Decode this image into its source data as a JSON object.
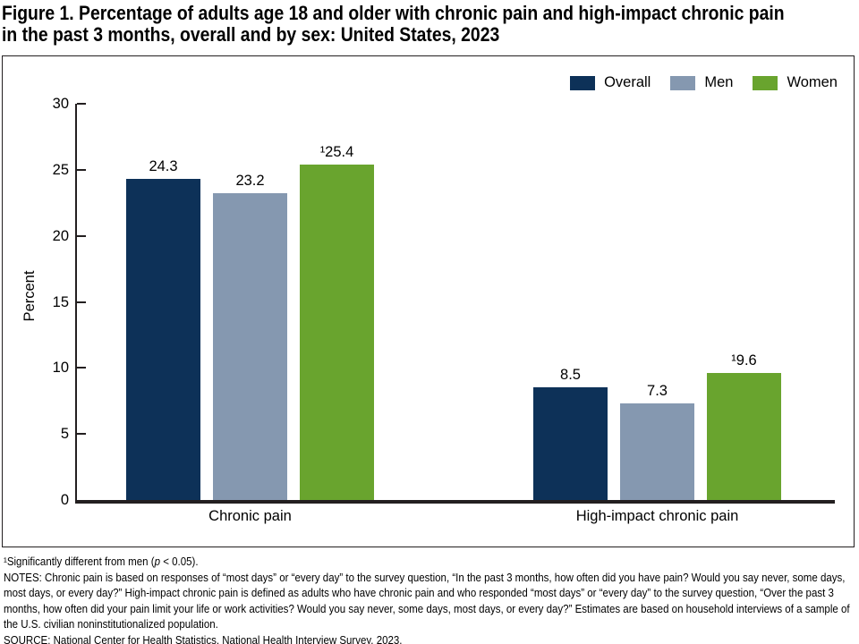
{
  "figure": {
    "title_line1": "Figure 1. Percentage of adults age 18 and older with chronic pain and high-impact chronic pain",
    "title_line2": "in the past 3 months, overall and by sex: United States, 2023"
  },
  "chart_data": {
    "type": "bar",
    "categories": [
      "Chronic pain",
      "High-impact chronic pain"
    ],
    "series": [
      {
        "name": "Overall",
        "color": "#0d3158",
        "values": [
          24.3,
          8.5
        ],
        "labels": [
          "24.3",
          "8.5"
        ]
      },
      {
        "name": "Men",
        "color": "#8598b0",
        "values": [
          23.2,
          7.3
        ],
        "labels": [
          "23.2",
          "7.3"
        ]
      },
      {
        "name": "Women",
        "color": "#69a42e",
        "values": [
          25.4,
          9.6
        ],
        "labels": [
          "¹25.4",
          "¹9.6"
        ]
      }
    ],
    "ylabel": "Percent",
    "ylim": [
      0,
      30
    ],
    "yticks": [
      0,
      5,
      10,
      15,
      20,
      25,
      30
    ],
    "grid": false,
    "legend_position": "top-right"
  },
  "footnotes": {
    "significance_prefix": "¹Significantly different from men (",
    "significance_italic": "p",
    "significance_suffix": " < 0.05).",
    "notes": "NOTES: Chronic pain is based on responses of “most days” or “every day” to the survey question, “In the past 3 months, how often did you have pain? Would you say never, some days, most days, or every day?” High-impact chronic pain is defined as adults who have chronic pain and who responded “most days” or “every day” to the survey question, “Over the past 3 months, how often did your pain limit your life or work activities? Would you say never, some days, most days, or every day?” Estimates are based on household interviews of a sample of the U.S. civilian noninstitutionalized population.",
    "source": "SOURCE: National Center for Health Statistics, National Health Interview Survey, 2023."
  }
}
